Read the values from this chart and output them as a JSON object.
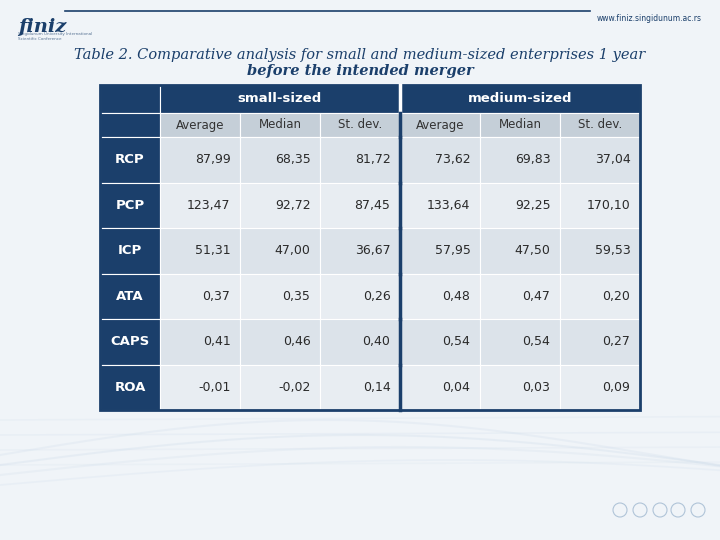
{
  "title_line1": "Table 2. Comparative analysis for small and medium-sized enterprises 1 year",
  "title_line2": "before the intended merger",
  "header1": "small-sized",
  "header2": "medium-sized",
  "subheaders": [
    "Average",
    "Median",
    "St. dev.",
    "Average",
    "Median",
    "St. dev."
  ],
  "row_labels": [
    "RCP",
    "PCP",
    "ICP",
    "ATA",
    "CAPS",
    "ROA"
  ],
  "data": [
    [
      "87,99",
      "68,35",
      "81,72",
      "73,62",
      "69,83",
      "37,04"
    ],
    [
      "123,47",
      "92,72",
      "87,45",
      "133,64",
      "92,25",
      "170,10"
    ],
    [
      "51,31",
      "47,00",
      "36,67",
      "57,95",
      "47,50",
      "59,53"
    ],
    [
      "0,37",
      "0,35",
      "0,26",
      "0,48",
      "0,47",
      "0,20"
    ],
    [
      "0,41",
      "0,46",
      "0,40",
      "0,54",
      "0,54",
      "0,27"
    ],
    [
      "-0,01",
      "-0,02",
      "0,14",
      "0,04",
      "0,03",
      "0,09"
    ]
  ],
  "header_bg_color": "#1b3f6b",
  "header_text_color": "#ffffff",
  "row_label_bg_color": "#1b3f6b",
  "row_label_text_color": "#ffffff",
  "subheader_bg_color": "#c5cfd8",
  "subheader_text_color": "#333333",
  "odd_row_bg": "#dce3ea",
  "even_row_bg": "#e8edf2",
  "data_text_color": "#2a2a2a",
  "divider_color": "#1b3f6b",
  "bg_color": "#f0f4f8",
  "title_color": "#1b3f6b",
  "title_fontsize": 10.5,
  "finiz_color": "#1b3f6b",
  "line_color": "#1b3f6b",
  "url_color": "#1b3f6b"
}
